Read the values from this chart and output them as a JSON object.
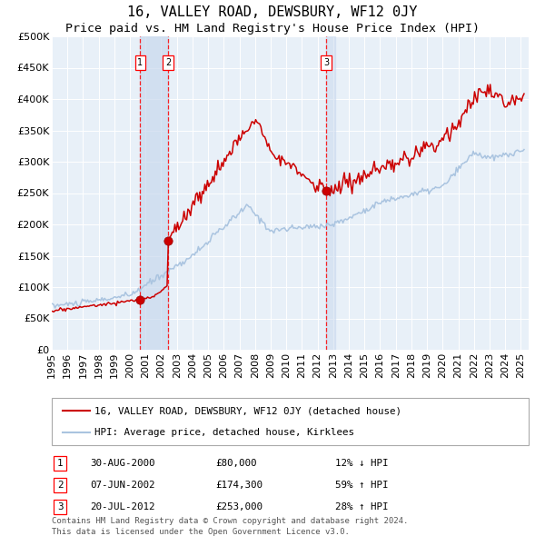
{
  "title": "16, VALLEY ROAD, DEWSBURY, WF12 0JY",
  "subtitle": "Price paid vs. HM Land Registry's House Price Index (HPI)",
  "legend_line1": "16, VALLEY ROAD, DEWSBURY, WF12 0JY (detached house)",
  "legend_line2": "HPI: Average price, detached house, Kirklees",
  "footer1": "Contains HM Land Registry data © Crown copyright and database right 2024.",
  "footer2": "This data is licensed under the Open Government Licence v3.0.",
  "transactions": [
    {
      "num": 1,
      "date": "30-AUG-2000",
      "price": 80000,
      "pct": "12%",
      "dir": "↓"
    },
    {
      "num": 2,
      "date": "07-JUN-2002",
      "price": 174300,
      "pct": "59%",
      "dir": "↑"
    },
    {
      "num": 3,
      "date": "20-JUL-2012",
      "price": 253000,
      "pct": "28%",
      "dir": "↑"
    }
  ],
  "transaction_dates_decimal": [
    2000.664,
    2002.434,
    2012.551
  ],
  "transaction_prices": [
    80000,
    174300,
    253000
  ],
  "ylim": [
    0,
    500000
  ],
  "xlim_start": 1995.0,
  "xlim_end": 2025.5,
  "hpi_color": "#aac4e0",
  "price_color": "#cc0000",
  "dot_color": "#cc0000",
  "plot_bg_color": "#e8f0f8",
  "shade_color": "#c8d8ee",
  "title_fontsize": 11,
  "subtitle_fontsize": 9.5,
  "tick_fontsize": 8,
  "label_fontsize": 8,
  "footer_fontsize": 6.5
}
